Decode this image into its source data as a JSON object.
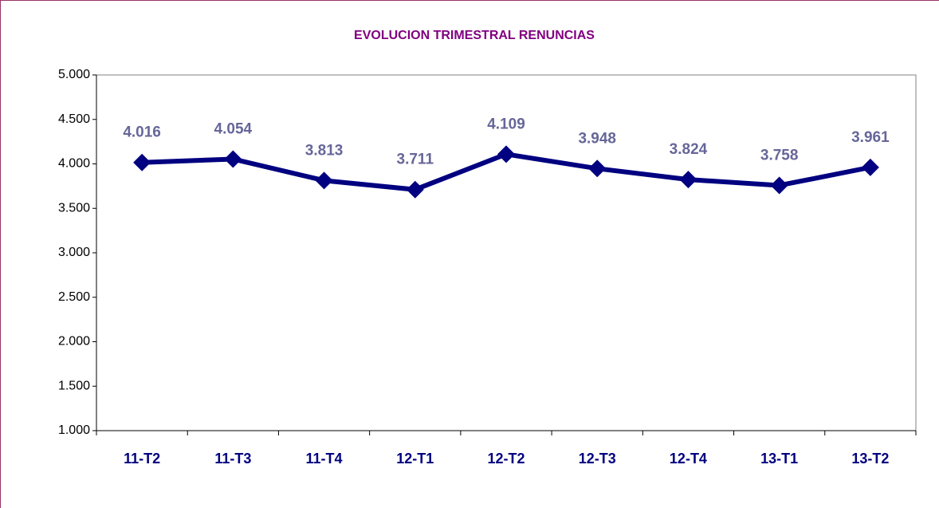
{
  "chart_data": {
    "type": "line",
    "title": "EVOLUCION TRIMESTRAL RENUNCIAS",
    "categories": [
      "11-T2",
      "11-T3",
      "11-T4",
      "12-T1",
      "12-T2",
      "12-T3",
      "12-T4",
      "13-T1",
      "13-T2"
    ],
    "values": [
      4016,
      4054,
      3813,
      3711,
      4109,
      3948,
      3824,
      3758,
      3961
    ],
    "value_labels": [
      "4.016",
      "4.054",
      "3.813",
      "3.711",
      "4.109",
      "3.948",
      "3.824",
      "3.758",
      "3.961"
    ],
    "color": "#000080",
    "ylim": [
      1000,
      5000
    ],
    "yticks": [
      {
        "value": 1000,
        "label": "1.000"
      },
      {
        "value": 1500,
        "label": "1.500"
      },
      {
        "value": 2000,
        "label": "2.000"
      },
      {
        "value": 2500,
        "label": "2.500"
      },
      {
        "value": 3000,
        "label": "3.000"
      },
      {
        "value": 3500,
        "label": "3.500"
      },
      {
        "value": 4000,
        "label": "4.000"
      },
      {
        "value": 4500,
        "label": "4.500"
      },
      {
        "value": 5000,
        "label": "5.000"
      }
    ],
    "grid": false
  }
}
